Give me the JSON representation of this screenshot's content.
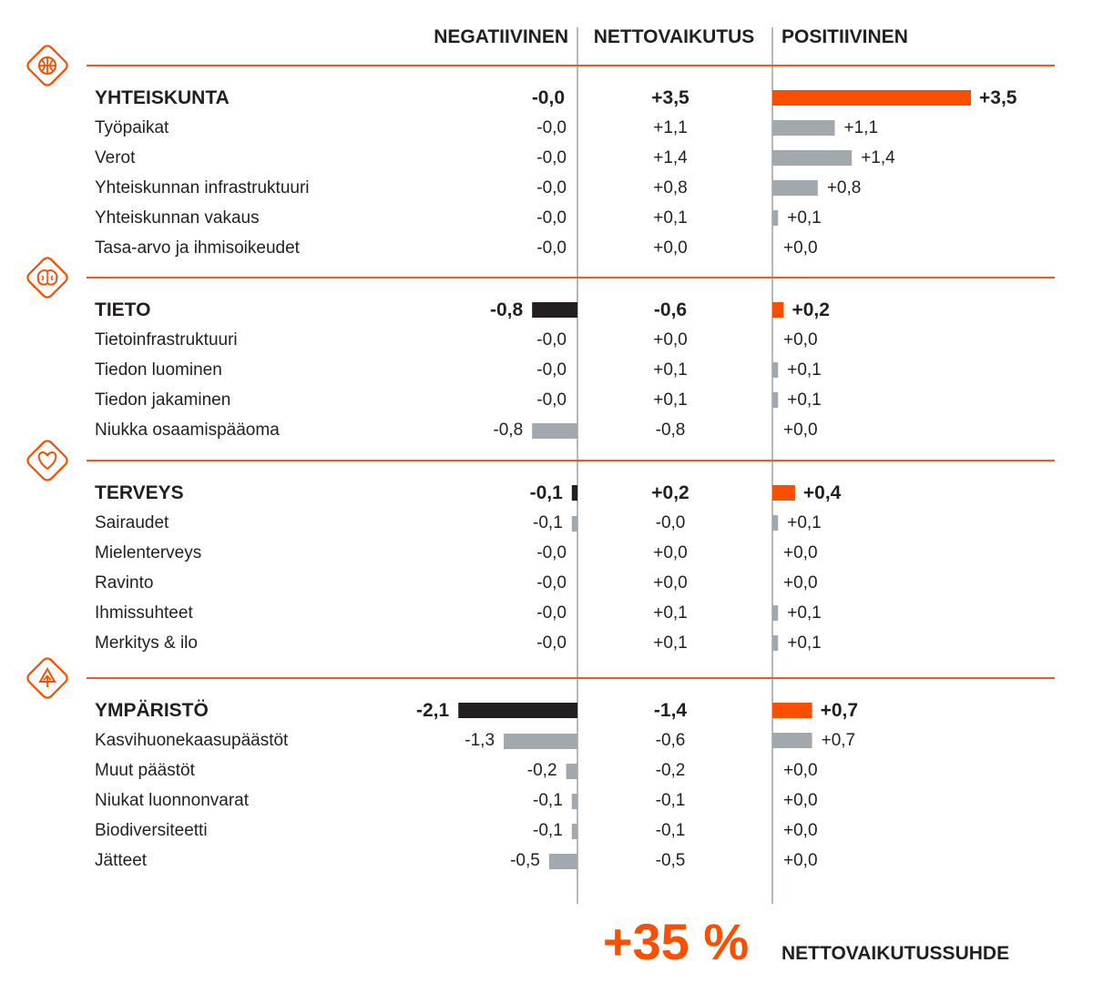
{
  "headers": {
    "negative": "NEGATIIVINEN",
    "net": "NETTOVAIKUTUS",
    "positive": "POSITIIVINEN"
  },
  "colors": {
    "accent": "#fa4e00",
    "category_negative_bar": "#231f20",
    "sub_bar": "#a1a8ae",
    "divider": "#ee5a1c",
    "column_line": "#b4b9bd",
    "text": "#231f20"
  },
  "chart_data": {
    "type": "diverging-bar",
    "scale_max": 3.5,
    "groups": [
      {
        "name": "YHTEISKUNTA",
        "icon": "basketball-icon",
        "negative": -0.0,
        "negative_label": "-0,0",
        "net_label": "+3,5",
        "positive": 3.5,
        "positive_label": "+3,5",
        "items": [
          {
            "name": "Työpaikat",
            "negative": 0.0,
            "negative_label": "-0,0",
            "net_label": "+1,1",
            "positive": 1.1,
            "positive_label": "+1,1"
          },
          {
            "name": "Verot",
            "negative": 0.0,
            "negative_label": "-0,0",
            "net_label": "+1,4",
            "positive": 1.4,
            "positive_label": "+1,4"
          },
          {
            "name": "Yhteiskunnan infrastruktuuri",
            "negative": 0.0,
            "negative_label": "-0,0",
            "net_label": "+0,8",
            "positive": 0.8,
            "positive_label": "+0,8"
          },
          {
            "name": "Yhteiskunnan vakaus",
            "negative": 0.0,
            "negative_label": "-0,0",
            "net_label": "+0,1",
            "positive": 0.1,
            "positive_label": "+0,1"
          },
          {
            "name": "Tasa-arvo ja ihmisoikeudet",
            "negative": 0.0,
            "negative_label": "-0,0",
            "net_label": "+0,0",
            "positive": 0.0,
            "positive_label": "+0,0"
          }
        ]
      },
      {
        "name": "TIETO",
        "icon": "brain-icon",
        "negative": -0.8,
        "negative_label": "-0,8",
        "net_label": "-0,6",
        "positive": 0.2,
        "positive_label": "+0,2",
        "items": [
          {
            "name": "Tietoinfrastruktuuri",
            "negative": 0.0,
            "negative_label": "-0,0",
            "net_label": "+0,0",
            "positive": 0.0,
            "positive_label": "+0,0"
          },
          {
            "name": "Tiedon luominen",
            "negative": 0.0,
            "negative_label": "-0,0",
            "net_label": "+0,1",
            "positive": 0.1,
            "positive_label": "+0,1"
          },
          {
            "name": "Tiedon jakaminen",
            "negative": 0.0,
            "negative_label": "-0,0",
            "net_label": "+0,1",
            "positive": 0.1,
            "positive_label": "+0,1"
          },
          {
            "name": "Niukka osaamispääoma",
            "negative": -0.8,
            "negative_label": "-0,8",
            "net_label": "-0,8",
            "positive": 0.0,
            "positive_label": "+0,0"
          }
        ]
      },
      {
        "name": "TERVEYS",
        "icon": "heart-icon",
        "negative": -0.1,
        "negative_label": "-0,1",
        "net_label": "+0,2",
        "positive": 0.4,
        "positive_label": "+0,4",
        "items": [
          {
            "name": "Sairaudet",
            "negative": -0.1,
            "negative_label": "-0,1",
            "net_label": "-0,0",
            "positive": 0.1,
            "positive_label": "+0,1"
          },
          {
            "name": "Mielenterveys",
            "negative": 0.0,
            "negative_label": "-0,0",
            "net_label": "+0,0",
            "positive": 0.0,
            "positive_label": "+0,0"
          },
          {
            "name": "Ravinto",
            "negative": 0.0,
            "negative_label": "-0,0",
            "net_label": "+0,0",
            "positive": 0.0,
            "positive_label": "+0,0"
          },
          {
            "name": "Ihmissuhteet",
            "negative": 0.0,
            "negative_label": "-0,0",
            "net_label": "+0,1",
            "positive": 0.1,
            "positive_label": "+0,1"
          },
          {
            "name": "Merkitys & ilo",
            "negative": 0.0,
            "negative_label": "-0,0",
            "net_label": "+0,1",
            "positive": 0.1,
            "positive_label": "+0,1"
          }
        ]
      },
      {
        "name": "YMPÄRISTÖ",
        "icon": "tree-icon",
        "negative": -2.1,
        "negative_label": "-2,1",
        "net_label": "-1,4",
        "positive": 0.7,
        "positive_label": "+0,7",
        "items": [
          {
            "name": "Kasvihuonekaasupäästöt",
            "negative": -1.3,
            "negative_label": "-1,3",
            "net_label": "-0,6",
            "positive": 0.7,
            "positive_label": "+0,7"
          },
          {
            "name": "Muut päästöt",
            "negative": -0.2,
            "negative_label": "-0,2",
            "net_label": "-0,2",
            "positive": 0.0,
            "positive_label": "+0,0"
          },
          {
            "name": "Niukat luonnonvarat",
            "negative": -0.1,
            "negative_label": "-0,1",
            "net_label": "-0,1",
            "positive": 0.0,
            "positive_label": "+0,0"
          },
          {
            "name": "Biodiversiteetti",
            "negative": -0.1,
            "negative_label": "-0,1",
            "net_label": "-0,1",
            "positive": 0.0,
            "positive_label": "+0,0"
          },
          {
            "name": "Jätteet",
            "negative": -0.5,
            "negative_label": "-0,5",
            "net_label": "-0,5",
            "positive": 0.0,
            "positive_label": "+0,0"
          }
        ]
      }
    ]
  },
  "summary": {
    "value": "+35 %",
    "label": "NETTOVAIKUTUSSUHDE"
  }
}
